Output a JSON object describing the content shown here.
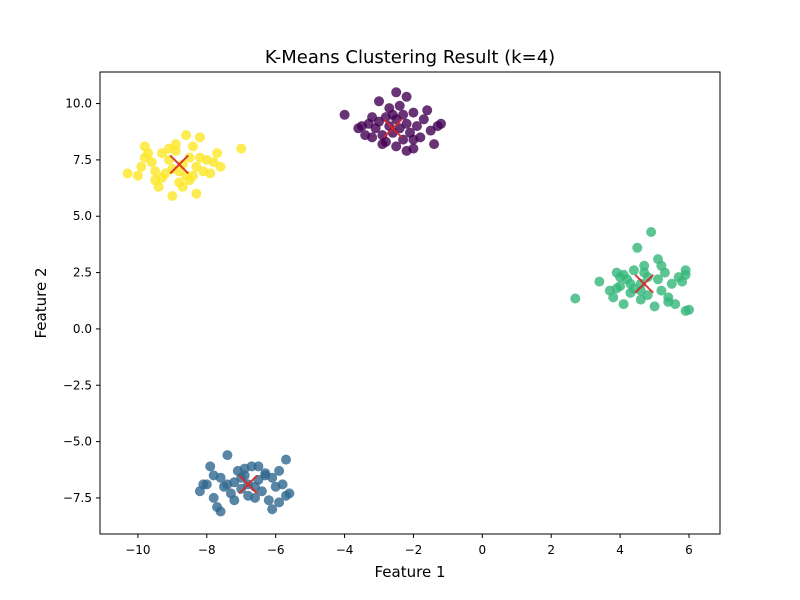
{
  "chart_data": {
    "type": "scatter",
    "title": "K-Means Clustering Result (k=4)",
    "xlabel": "Feature 1",
    "ylabel": "Feature 2",
    "xlim": [
      -11.1,
      6.9
    ],
    "ylim": [
      -9.1,
      11.4
    ],
    "xticks": [
      -10,
      -8,
      -6,
      -4,
      -2,
      0,
      2,
      4,
      6
    ],
    "xtick_labels": [
      "−10",
      "−8",
      "−6",
      "−4",
      "−2",
      "0",
      "2",
      "4",
      "6"
    ],
    "yticks": [
      -7.5,
      -5.0,
      -2.5,
      0.0,
      2.5,
      5.0,
      7.5,
      10.0
    ],
    "ytick_labels": [
      "−7.5",
      "−5.0",
      "−2.5",
      "0.0",
      "2.5",
      "5.0",
      "7.5",
      "10.0"
    ],
    "grid": false,
    "series": [
      {
        "color": "#440154",
        "points": [
          [
            -4.0,
            9.5
          ],
          [
            -3.5,
            9.0
          ],
          [
            -3.3,
            9.1
          ],
          [
            -3.2,
            8.5
          ],
          [
            -3.1,
            8.9
          ],
          [
            -3.0,
            9.2
          ],
          [
            -2.9,
            8.6
          ],
          [
            -2.8,
            9.4
          ],
          [
            -2.8,
            8.3
          ],
          [
            -2.7,
            9.8
          ],
          [
            -2.7,
            9.0
          ],
          [
            -2.6,
            8.7
          ],
          [
            -2.5,
            9.3
          ],
          [
            -2.5,
            8.1
          ],
          [
            -2.4,
            9.9
          ],
          [
            -2.4,
            8.9
          ],
          [
            -2.3,
            9.5
          ],
          [
            -2.3,
            8.4
          ],
          [
            -2.2,
            10.3
          ],
          [
            -2.2,
            9.1
          ],
          [
            -2.1,
            8.7
          ],
          [
            -2.0,
            9.6
          ],
          [
            -2.0,
            8.0
          ],
          [
            -1.9,
            9.0
          ],
          [
            -1.8,
            8.5
          ],
          [
            -1.7,
            9.3
          ],
          [
            -1.5,
            8.8
          ],
          [
            -1.4,
            8.2
          ],
          [
            -1.3,
            9.0
          ],
          [
            -1.2,
            9.1
          ],
          [
            -2.5,
            10.5
          ],
          [
            -3.0,
            10.1
          ],
          [
            -3.4,
            8.6
          ],
          [
            -2.2,
            7.9
          ],
          [
            -2.9,
            8.2
          ],
          [
            -1.6,
            9.7
          ],
          [
            -3.6,
            8.9
          ],
          [
            -2.0,
            8.4
          ],
          [
            -2.6,
            9.5
          ],
          [
            -3.2,
            9.4
          ]
        ]
      },
      {
        "color": "#31688e",
        "points": [
          [
            -8.2,
            -7.2
          ],
          [
            -8.0,
            -6.9
          ],
          [
            -7.9,
            -6.1
          ],
          [
            -7.8,
            -7.5
          ],
          [
            -7.7,
            -7.9
          ],
          [
            -7.6,
            -6.6
          ],
          [
            -7.5,
            -7.0
          ],
          [
            -7.4,
            -5.6
          ],
          [
            -7.3,
            -7.3
          ],
          [
            -7.2,
            -6.8
          ],
          [
            -7.1,
            -6.3
          ],
          [
            -7.0,
            -7.1
          ],
          [
            -6.9,
            -6.5
          ],
          [
            -6.8,
            -7.4
          ],
          [
            -6.8,
            -6.9
          ],
          [
            -6.7,
            -6.1
          ],
          [
            -6.6,
            -7.0
          ],
          [
            -6.5,
            -6.7
          ],
          [
            -6.4,
            -7.2
          ],
          [
            -6.3,
            -6.4
          ],
          [
            -6.2,
            -7.6
          ],
          [
            -6.1,
            -6.6
          ],
          [
            -6.0,
            -7.0
          ],
          [
            -5.9,
            -7.7
          ],
          [
            -5.8,
            -6.9
          ],
          [
            -5.7,
            -5.8
          ],
          [
            -5.6,
            -7.3
          ],
          [
            -7.6,
            -8.1
          ],
          [
            -8.1,
            -6.9
          ],
          [
            -6.9,
            -6.2
          ],
          [
            -7.2,
            -7.6
          ],
          [
            -6.3,
            -6.5
          ],
          [
            -6.1,
            -8.0
          ],
          [
            -5.9,
            -6.3
          ],
          [
            -7.0,
            -6.6
          ],
          [
            -6.6,
            -7.5
          ],
          [
            -7.4,
            -6.9
          ],
          [
            -6.5,
            -6.1
          ],
          [
            -5.7,
            -7.4
          ],
          [
            -7.8,
            -6.5
          ]
        ]
      },
      {
        "color": "#35b779",
        "points": [
          [
            2.7,
            1.35
          ],
          [
            3.4,
            2.1
          ],
          [
            3.7,
            1.7
          ],
          [
            3.8,
            1.4
          ],
          [
            3.9,
            2.5
          ],
          [
            4.0,
            1.9
          ],
          [
            4.1,
            2.4
          ],
          [
            4.1,
            1.1
          ],
          [
            4.2,
            2.2
          ],
          [
            4.3,
            1.6
          ],
          [
            4.4,
            2.6
          ],
          [
            4.4,
            1.8
          ],
          [
            4.5,
            3.6
          ],
          [
            4.6,
            2.0
          ],
          [
            4.6,
            1.3
          ],
          [
            4.7,
            2.8
          ],
          [
            4.8,
            1.5
          ],
          [
            4.8,
            2.3
          ],
          [
            4.9,
            4.3
          ],
          [
            5.0,
            1.0
          ],
          [
            5.1,
            2.2
          ],
          [
            5.1,
            3.1
          ],
          [
            5.2,
            1.7
          ],
          [
            5.3,
            2.5
          ],
          [
            5.4,
            1.4
          ],
          [
            5.5,
            2.0
          ],
          [
            5.6,
            1.1
          ],
          [
            5.7,
            2.3
          ],
          [
            5.8,
            2.1
          ],
          [
            5.9,
            2.4
          ],
          [
            5.9,
            0.8
          ],
          [
            6.0,
            0.85
          ],
          [
            5.9,
            2.6
          ],
          [
            4.3,
            2.0
          ],
          [
            3.9,
            1.8
          ],
          [
            4.6,
            1.7
          ],
          [
            5.2,
            2.8
          ],
          [
            4.0,
            2.3
          ],
          [
            4.7,
            2.5
          ],
          [
            5.4,
            1.2
          ]
        ]
      },
      {
        "color": "#fde725",
        "points": [
          [
            -10.3,
            6.9
          ],
          [
            -10.0,
            6.8
          ],
          [
            -9.9,
            7.2
          ],
          [
            -9.8,
            8.1
          ],
          [
            -9.8,
            7.6
          ],
          [
            -9.6,
            7.4
          ],
          [
            -9.5,
            7.0
          ],
          [
            -9.5,
            6.6
          ],
          [
            -9.4,
            6.3
          ],
          [
            -9.3,
            7.8
          ],
          [
            -9.2,
            6.9
          ],
          [
            -9.1,
            7.5
          ],
          [
            -9.0,
            5.9
          ],
          [
            -9.0,
            7.1
          ],
          [
            -8.9,
            8.2
          ],
          [
            -8.8,
            6.5
          ],
          [
            -8.7,
            7.3
          ],
          [
            -8.6,
            8.6
          ],
          [
            -8.6,
            6.8
          ],
          [
            -8.5,
            7.6
          ],
          [
            -8.4,
            8.1
          ],
          [
            -8.3,
            6.0
          ],
          [
            -8.3,
            7.2
          ],
          [
            -8.2,
            8.5
          ],
          [
            -8.1,
            7.0
          ],
          [
            -8.0,
            7.5
          ],
          [
            -7.9,
            6.9
          ],
          [
            -7.8,
            7.4
          ],
          [
            -7.7,
            7.8
          ],
          [
            -7.6,
            7.2
          ],
          [
            -7.0,
            8.0
          ],
          [
            -8.7,
            6.3
          ],
          [
            -9.3,
            6.7
          ],
          [
            -8.9,
            7.9
          ],
          [
            -8.5,
            6.6
          ],
          [
            -9.7,
            7.8
          ],
          [
            -8.2,
            7.6
          ],
          [
            -9.1,
            8.0
          ],
          [
            -8.8,
            7.0
          ],
          [
            -8.4,
            6.8
          ]
        ]
      }
    ],
    "centroids": [
      [
        -2.6,
        8.9
      ],
      [
        -6.8,
        -6.9
      ],
      [
        4.7,
        2.0
      ],
      [
        -8.8,
        7.3
      ]
    ],
    "centroid_color": "#d62728"
  }
}
